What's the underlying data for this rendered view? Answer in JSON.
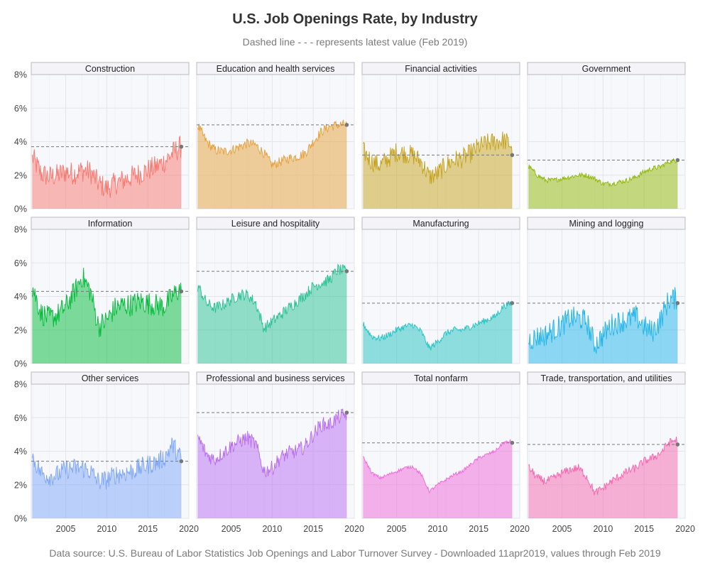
{
  "title": "U.S. Job Openings Rate, by Industry",
  "subtitle": "Dashed line  - - -  represents latest value (Feb 2019)",
  "source": "Data source: U.S. Bureau of Labor Statistics Job Openings and Labor Turnover Survey - Downloaded 11apr2019, values through Feb 2019",
  "chart_data": {
    "type": "area",
    "title": "U.S. Job Openings Rate, by Industry",
    "xlim": [
      2000.8,
      2020
    ],
    "ylim": [
      0,
      8
    ],
    "x_ticks": [
      2005,
      2010,
      2015,
      2020
    ],
    "y_ticks": [
      0,
      2,
      4,
      6,
      8
    ],
    "y_tick_labels": [
      "0%",
      "2%",
      "4%",
      "6%",
      "8%"
    ],
    "grid": true,
    "facets": "4 columns x 3 rows, shared axes",
    "x_start": 2000.92,
    "x_end": 2019.08,
    "series": [
      {
        "name": "Construction",
        "color": "#F8766D",
        "latest": 3.7,
        "x": [
          2001,
          2002,
          2003,
          2004,
          2005,
          2006,
          2007,
          2008,
          2009,
          2010,
          2011,
          2012,
          2013,
          2014,
          2015,
          2016,
          2017,
          2018,
          2019
        ],
        "y": [
          3.0,
          2.1,
          1.9,
          2.0,
          2.2,
          2.1,
          2.3,
          2.2,
          1.5,
          1.2,
          1.5,
          1.7,
          1.9,
          2.1,
          2.3,
          2.5,
          2.8,
          3.3,
          3.7
        ],
        "noise": 0.7
      },
      {
        "name": "Education and health services",
        "color": "#E69F38",
        "latest": 5.0,
        "x": [
          2001,
          2002,
          2003,
          2004,
          2005,
          2006,
          2007,
          2008,
          2009,
          2010,
          2011,
          2012,
          2013,
          2014,
          2015,
          2016,
          2017,
          2018,
          2019
        ],
        "y": [
          4.9,
          4.0,
          3.5,
          3.4,
          3.5,
          3.7,
          3.9,
          3.8,
          3.3,
          2.6,
          2.8,
          3.0,
          3.1,
          3.3,
          4.0,
          4.6,
          4.9,
          5.0,
          5.0
        ],
        "noise": 0.3
      },
      {
        "name": "Financial activities",
        "color": "#C5A11A",
        "latest": 3.2,
        "x": [
          2001,
          2002,
          2003,
          2004,
          2005,
          2006,
          2007,
          2008,
          2009,
          2010,
          2011,
          2012,
          2013,
          2014,
          2015,
          2016,
          2017,
          2018,
          2019
        ],
        "y": [
          3.4,
          2.8,
          2.6,
          3.0,
          3.4,
          3.3,
          3.2,
          2.8,
          1.9,
          2.1,
          2.6,
          2.9,
          3.0,
          3.3,
          3.7,
          3.9,
          4.0,
          4.1,
          3.8
        ],
        "noise": 0.6
      },
      {
        "name": "Government",
        "color": "#8DB600",
        "latest": 2.9,
        "x": [
          2001,
          2002,
          2003,
          2004,
          2005,
          2006,
          2007,
          2008,
          2009,
          2010,
          2011,
          2012,
          2013,
          2014,
          2015,
          2016,
          2017,
          2018,
          2019
        ],
        "y": [
          2.5,
          2.0,
          1.7,
          1.7,
          1.8,
          1.9,
          2.0,
          2.0,
          1.8,
          1.5,
          1.5,
          1.6,
          1.7,
          1.9,
          2.2,
          2.4,
          2.5,
          2.8,
          2.9
        ],
        "noise": 0.15
      },
      {
        "name": "Information",
        "color": "#00BA38",
        "latest": 4.3,
        "x": [
          2001,
          2002,
          2003,
          2004,
          2005,
          2006,
          2007,
          2008,
          2009,
          2010,
          2011,
          2012,
          2013,
          2014,
          2015,
          2016,
          2017,
          2018,
          2019
        ],
        "y": [
          4.5,
          3.0,
          2.7,
          2.9,
          3.4,
          4.2,
          5.2,
          4.3,
          2.2,
          2.6,
          3.3,
          3.5,
          3.5,
          3.7,
          3.6,
          3.5,
          3.4,
          4.0,
          4.5
        ],
        "noise": 0.7
      },
      {
        "name": "Leisure and hospitality",
        "color": "#27C092",
        "latest": 5.5,
        "x": [
          2001,
          2002,
          2003,
          2004,
          2005,
          2006,
          2007,
          2008,
          2009,
          2010,
          2011,
          2012,
          2013,
          2014,
          2015,
          2016,
          2017,
          2018,
          2019
        ],
        "y": [
          4.6,
          3.6,
          3.3,
          3.5,
          3.8,
          4.1,
          4.1,
          3.6,
          2.1,
          2.5,
          2.9,
          3.3,
          3.7,
          4.1,
          4.6,
          4.8,
          5.0,
          5.6,
          5.5
        ],
        "noise": 0.35
      },
      {
        "name": "Manufacturing",
        "color": "#23C2C2",
        "latest": 3.6,
        "x": [
          2001,
          2002,
          2003,
          2004,
          2005,
          2006,
          2007,
          2008,
          2009,
          2010,
          2011,
          2012,
          2013,
          2014,
          2015,
          2016,
          2017,
          2018,
          2019
        ],
        "y": [
          2.3,
          1.6,
          1.5,
          1.7,
          2.0,
          2.2,
          2.3,
          1.9,
          0.9,
          1.3,
          1.8,
          2.0,
          2.0,
          2.2,
          2.4,
          2.6,
          2.8,
          3.4,
          3.6
        ],
        "noise": 0.2
      },
      {
        "name": "Mining and logging",
        "color": "#1FB3E8",
        "latest": 3.6,
        "x": [
          2001,
          2002,
          2003,
          2004,
          2005,
          2006,
          2007,
          2008,
          2009,
          2010,
          2011,
          2012,
          2013,
          2014,
          2015,
          2016,
          2017,
          2018,
          2019
        ],
        "y": [
          1.4,
          1.6,
          1.7,
          2.0,
          2.3,
          2.7,
          2.7,
          2.5,
          1.1,
          1.7,
          2.3,
          2.5,
          2.6,
          2.8,
          2.2,
          1.9,
          2.6,
          3.8,
          3.9
        ],
        "noise": 0.7
      },
      {
        "name": "Other services",
        "color": "#7EA6F5",
        "latest": 3.4,
        "x": [
          2001,
          2002,
          2003,
          2004,
          2005,
          2006,
          2007,
          2008,
          2009,
          2010,
          2011,
          2012,
          2013,
          2014,
          2015,
          2016,
          2017,
          2018,
          2019
        ],
        "y": [
          3.6,
          2.7,
          2.5,
          2.6,
          2.9,
          3.0,
          3.0,
          2.8,
          2.2,
          2.3,
          2.6,
          2.7,
          2.8,
          3.0,
          3.2,
          3.3,
          3.6,
          4.4,
          3.6
        ],
        "noise": 0.6
      },
      {
        "name": "Professional and business services",
        "color": "#B86BEF",
        "latest": 6.3,
        "x": [
          2001,
          2002,
          2003,
          2004,
          2005,
          2006,
          2007,
          2008,
          2009,
          2010,
          2011,
          2012,
          2013,
          2014,
          2015,
          2016,
          2017,
          2018,
          2019
        ],
        "y": [
          4.8,
          3.8,
          3.5,
          3.9,
          4.3,
          4.6,
          4.8,
          4.4,
          2.8,
          3.0,
          3.6,
          3.9,
          4.0,
          4.3,
          5.0,
          5.6,
          5.6,
          6.0,
          6.2
        ],
        "noise": 0.45
      },
      {
        "name": "Total nonfarm",
        "color": "#F066D8",
        "latest": 4.5,
        "x": [
          2001,
          2002,
          2003,
          2004,
          2005,
          2006,
          2007,
          2008,
          2009,
          2010,
          2011,
          2012,
          2013,
          2014,
          2015,
          2016,
          2017,
          2018,
          2019
        ],
        "y": [
          3.6,
          2.7,
          2.4,
          2.6,
          2.8,
          3.0,
          3.1,
          2.6,
          1.6,
          2.0,
          2.3,
          2.6,
          2.8,
          3.2,
          3.6,
          3.8,
          4.0,
          4.5,
          4.6
        ],
        "noise": 0.1
      },
      {
        "name": "Trade, transportation, and utilities",
        "color": "#F466AE",
        "latest": 4.4,
        "x": [
          2001,
          2002,
          2003,
          2004,
          2005,
          2006,
          2007,
          2008,
          2009,
          2010,
          2011,
          2012,
          2013,
          2014,
          2015,
          2016,
          2017,
          2018,
          2019
        ],
        "y": [
          3.0,
          2.4,
          2.2,
          2.4,
          2.7,
          2.9,
          3.0,
          2.5,
          1.5,
          1.8,
          2.2,
          2.5,
          2.8,
          3.0,
          3.4,
          3.6,
          3.9,
          4.5,
          4.7
        ],
        "noise": 0.25
      }
    ]
  }
}
